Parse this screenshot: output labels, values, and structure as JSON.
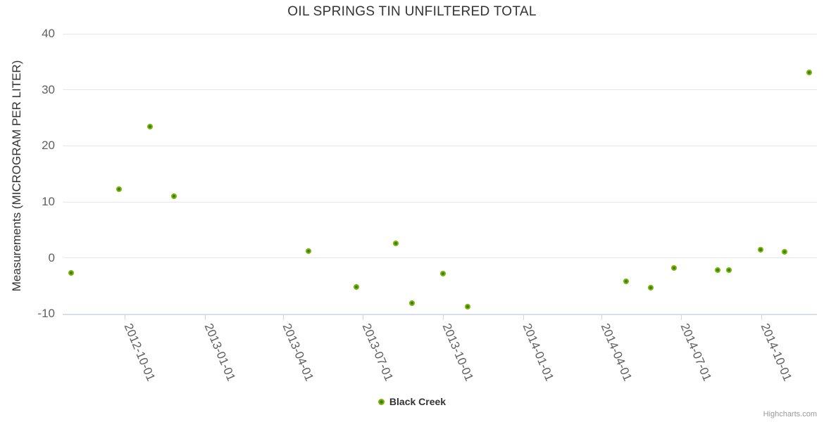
{
  "credit": "Highcharts.com",
  "colors": {
    "marker_inner": "#3c7d00",
    "marker_outer": "#77b30a",
    "grid": "#e6e6e6",
    "axis_line": "#ccd6eb",
    "axis_label": "#606060",
    "title_text": "#333333",
    "credit_text": "#999999"
  },
  "chart_data": {
    "type": "scatter",
    "title": "OIL SPRINGS TIN UNFILTERED TOTAL",
    "xlabel": "",
    "ylabel": "Measurements (MICROGRAM PER LITER)",
    "ylim": [
      -10,
      40
    ],
    "yticks": [
      -10,
      0,
      10,
      20,
      30,
      40
    ],
    "xticks": [
      "2012-10-01",
      "2013-01-01",
      "2013-04-01",
      "2013-07-01",
      "2013-10-01",
      "2014-01-01",
      "2014-04-01",
      "2014-07-01",
      "2014-10-01"
    ],
    "grid": "horizontal",
    "legend_position": "bottom-center",
    "series": [
      {
        "name": "Black Creek",
        "points": [
          [
            "2012-08-01",
            -2.7
          ],
          [
            "2012-09-25",
            12.2
          ],
          [
            "2012-10-30",
            23.4
          ],
          [
            "2012-11-27",
            11.0
          ],
          [
            "2013-04-30",
            1.2
          ],
          [
            "2013-06-24",
            -5.2
          ],
          [
            "2013-08-08",
            2.5
          ],
          [
            "2013-08-27",
            -8.2
          ],
          [
            "2013-10-01",
            -2.9
          ],
          [
            "2013-10-29",
            -8.8
          ],
          [
            "2014-04-29",
            -4.3
          ],
          [
            "2014-05-27",
            -5.4
          ],
          [
            "2014-06-23",
            -1.9
          ],
          [
            "2014-08-12",
            -2.2
          ],
          [
            "2014-08-25",
            -2.2
          ],
          [
            "2014-09-30",
            1.4
          ],
          [
            "2014-10-28",
            1.0
          ],
          [
            "2014-11-25",
            33.0
          ]
        ]
      }
    ]
  }
}
